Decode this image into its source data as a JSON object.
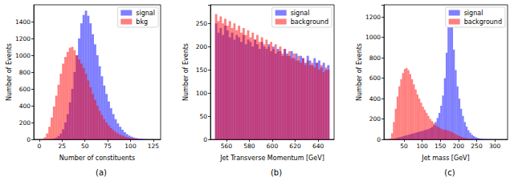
{
  "chart_data": [
    {
      "type": "histogram",
      "caption": "(a)",
      "x_label": "Number of constituents",
      "y_label": "Number of Events",
      "bins": [
        0,
        2.5,
        5,
        7.5,
        10,
        12.5,
        15,
        17.5,
        20,
        22.5,
        25,
        27.5,
        30,
        32.5,
        35,
        37.5,
        40,
        42.5,
        45,
        47.5,
        50,
        52.5,
        55,
        57.5,
        60,
        62.5,
        65,
        67.5,
        70,
        72.5,
        75,
        77.5,
        80,
        82.5,
        85,
        87.5,
        90,
        92.5,
        95,
        97.5,
        100,
        102.5,
        105,
        107.5,
        110,
        112.5,
        115,
        117.5,
        120,
        122.5,
        125,
        127.5,
        130
      ],
      "series": [
        {
          "name": "signal",
          "color": "#0000ff",
          "values": [
            0,
            0,
            0,
            0,
            2,
            5,
            10,
            20,
            40,
            70,
            120,
            200,
            300,
            440,
            600,
            800,
            1000,
            1200,
            1380,
            1480,
            1530,
            1470,
            1380,
            1250,
            1130,
            1000,
            870,
            750,
            640,
            540,
            450,
            370,
            300,
            240,
            190,
            150,
            115,
            85,
            62,
            45,
            32,
            22,
            15,
            10,
            7,
            5,
            3,
            2,
            1,
            1,
            0,
            0
          ]
        },
        {
          "name": "bkg",
          "color": "#ff0000",
          "values": [
            0,
            5,
            25,
            70,
            150,
            260,
            390,
            520,
            650,
            780,
            900,
            980,
            1040,
            1090,
            1100,
            1060,
            1000,
            950,
            900,
            850,
            780,
            700,
            620,
            540,
            470,
            400,
            340,
            290,
            240,
            200,
            165,
            135,
            110,
            88,
            70,
            55,
            43,
            33,
            25,
            19,
            14,
            10,
            7,
            5,
            3,
            2,
            1,
            1,
            0,
            0,
            0,
            0
          ]
        }
      ],
      "xlim": [
        -6,
        133
      ],
      "xticks": [
        0,
        25,
        50,
        75,
        100,
        125
      ],
      "ylim": [
        0,
        1600
      ],
      "yticks": [
        0,
        200,
        400,
        600,
        800,
        1000,
        1200,
        1400
      ],
      "grid": false,
      "legend": "upper right"
    },
    {
      "type": "histogram",
      "caption": "(b)",
      "x_label": "Jet Transverse Momentum [GeV]",
      "y_label": "Number of Events",
      "bins": [
        550,
        552,
        554,
        556,
        558,
        560,
        562,
        564,
        566,
        568,
        570,
        572,
        574,
        576,
        578,
        580,
        582,
        584,
        586,
        588,
        590,
        592,
        594,
        596,
        598,
        600,
        602,
        604,
        606,
        608,
        610,
        612,
        614,
        616,
        618,
        620,
        622,
        624,
        626,
        628,
        630,
        632,
        634,
        636,
        638,
        640,
        642,
        644,
        646,
        648,
        650
      ],
      "series": [
        {
          "name": "signal",
          "color": "#0000ff",
          "values": [
            250,
            230,
            240,
            225,
            245,
            235,
            220,
            230,
            215,
            225,
            220,
            210,
            225,
            205,
            215,
            210,
            200,
            215,
            205,
            195,
            210,
            200,
            195,
            205,
            190,
            200,
            185,
            195,
            190,
            180,
            195,
            185,
            180,
            190,
            175,
            185,
            170,
            180,
            175,
            165,
            180,
            170,
            160,
            175,
            165,
            170,
            155,
            165,
            150,
            160
          ]
        },
        {
          "name": "background",
          "color": "#ff0000",
          "values": [
            270,
            255,
            265,
            250,
            260,
            245,
            255,
            240,
            250,
            235,
            245,
            230,
            240,
            225,
            235,
            220,
            230,
            215,
            225,
            210,
            220,
            205,
            215,
            200,
            210,
            195,
            205,
            190,
            200,
            185,
            195,
            180,
            190,
            175,
            185,
            170,
            180,
            165,
            175,
            160,
            170,
            160,
            165,
            155,
            165,
            150,
            160,
            145,
            155,
            150
          ]
        }
      ],
      "xlim": [
        546,
        654
      ],
      "xticks": [
        560,
        580,
        600,
        620,
        640
      ],
      "ylim": [
        0,
        290
      ],
      "yticks": [
        0,
        50,
        100,
        150,
        200,
        250
      ],
      "grid": false,
      "legend": "upper right"
    },
    {
      "type": "histogram",
      "caption": "(c)",
      "x_label": "Jet mass [GeV]",
      "y_label": "Number of Events",
      "bins": [
        10,
        15,
        20,
        25,
        30,
        35,
        40,
        45,
        50,
        55,
        60,
        65,
        70,
        75,
        80,
        85,
        90,
        95,
        100,
        105,
        110,
        115,
        120,
        125,
        130,
        135,
        140,
        145,
        150,
        155,
        160,
        165,
        170,
        175,
        180,
        185,
        190,
        195,
        200,
        205,
        210,
        215,
        220,
        225,
        230,
        235,
        240,
        245,
        250,
        255,
        260,
        265,
        270,
        275,
        280,
        285,
        290,
        295,
        300,
        305,
        310,
        315,
        320
      ],
      "series": [
        {
          "name": "signal",
          "color": "#0000ff",
          "values": [
            0,
            2,
            5,
            10,
            15,
            20,
            25,
            30,
            35,
            40,
            45,
            50,
            55,
            60,
            65,
            70,
            75,
            80,
            85,
            90,
            95,
            100,
            110,
            120,
            140,
            170,
            210,
            260,
            330,
            430,
            600,
            850,
            1150,
            1260,
            1100,
            880,
            680,
            520,
            400,
            300,
            230,
            170,
            125,
            90,
            65,
            45,
            32,
            22,
            15,
            10,
            7,
            5,
            4,
            3,
            2,
            2,
            1,
            1,
            1,
            0,
            0,
            0
          ]
        },
        {
          "name": "background",
          "color": "#ff0000",
          "values": [
            10,
            60,
            170,
            300,
            420,
            520,
            590,
            650,
            690,
            700,
            680,
            640,
            590,
            540,
            490,
            440,
            400,
            360,
            320,
            290,
            260,
            230,
            200,
            180,
            160,
            140,
            125,
            115,
            105,
            95,
            95,
            90,
            85,
            80,
            70,
            60,
            50,
            40,
            32,
            25,
            20,
            15,
            11,
            8,
            6,
            4,
            3,
            2,
            2,
            1,
            0,
            0,
            0,
            0,
            0,
            0,
            0,
            0,
            0,
            0,
            0,
            0
          ]
        }
      ],
      "xlim": [
        -5,
        335
      ],
      "xticks": [
        50,
        100,
        150,
        200,
        250,
        300
      ],
      "ylim": [
        0,
        1320
      ],
      "yticks": [
        0,
        200,
        400,
        600,
        800,
        1000,
        1200
      ],
      "grid": false,
      "legend": "upper right"
    }
  ]
}
